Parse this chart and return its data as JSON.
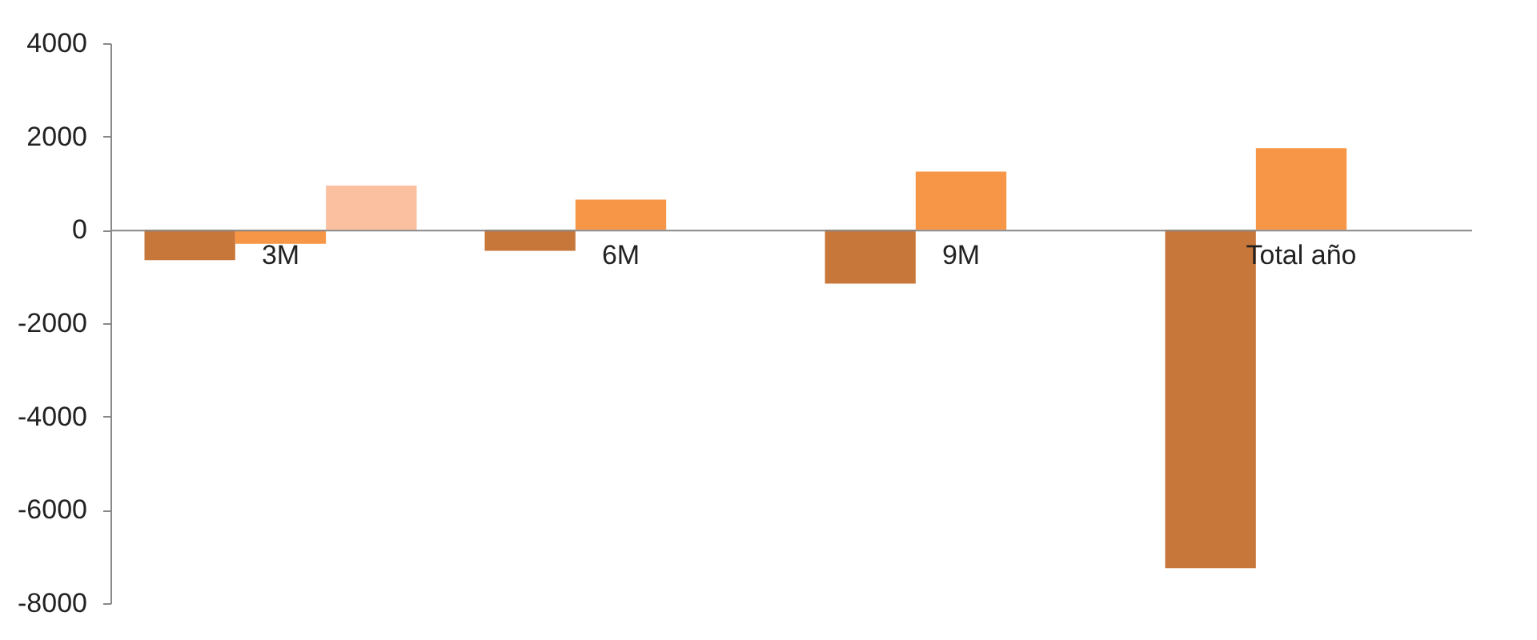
{
  "chart_data": {
    "type": "bar",
    "categories": [
      "3M",
      "6M",
      "9M",
      "Total año"
    ],
    "series": [
      {
        "color": "#c8773a",
        "values": [
          -650,
          -450,
          -1150,
          -7250
        ]
      },
      {
        "color": "#f79646",
        "values": [
          -300,
          650,
          1250,
          1750
        ]
      },
      {
        "color": "#fac0a0",
        "values": [
          950,
          null,
          null,
          null
        ]
      }
    ],
    "ylim": [
      -8000,
      4000
    ],
    "yticks": [
      -8000,
      -6000,
      -4000,
      -2000,
      0,
      2000,
      4000
    ],
    "grid": false,
    "legend": false
  }
}
